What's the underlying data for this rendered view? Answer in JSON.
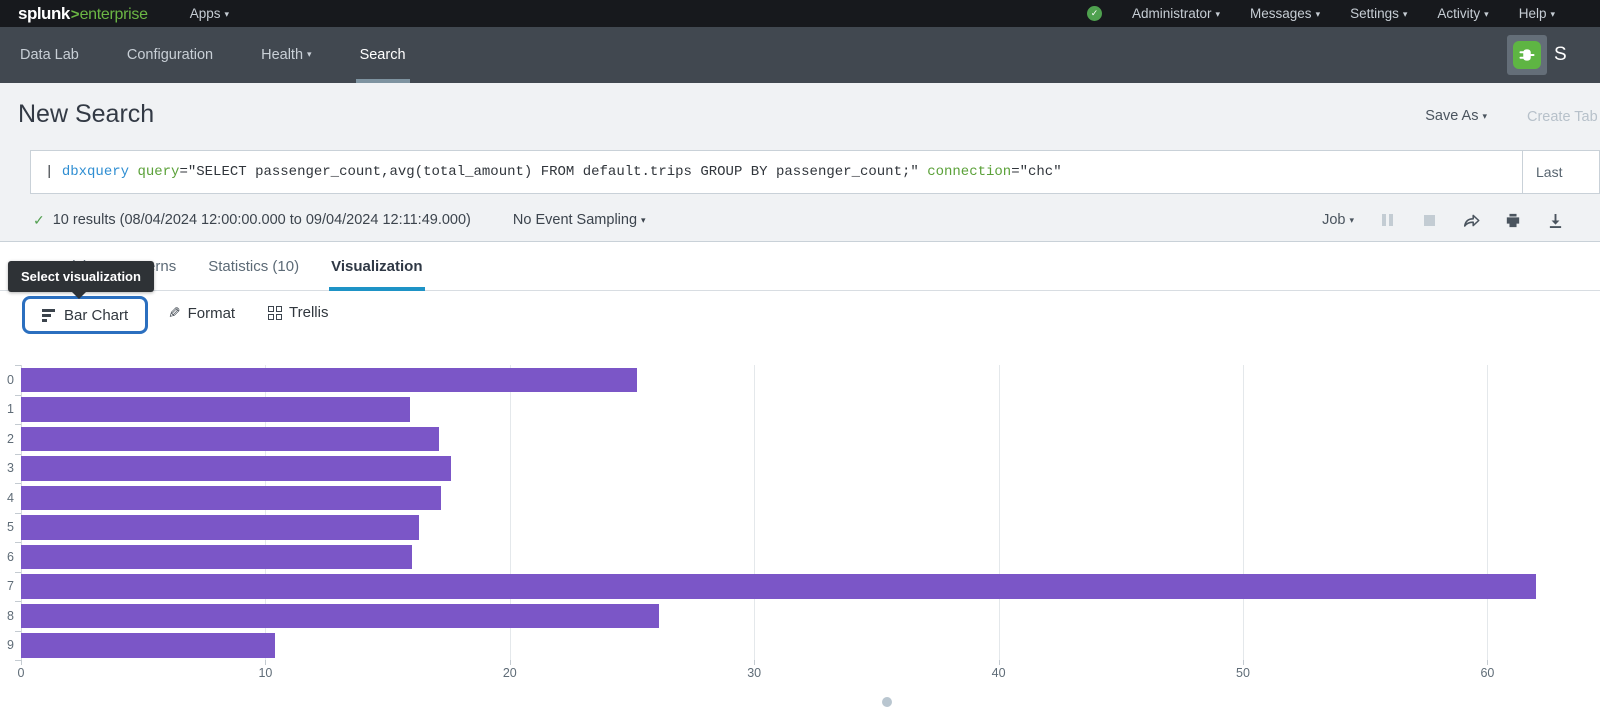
{
  "colors": {
    "bar_purple": "#7b56c7",
    "accent_blue": "#1e93c6",
    "brand_green": "#6bb644",
    "status_green": "#4fa14f",
    "button_border_blue": "#2b6fbf"
  },
  "topbar": {
    "logo": {
      "brand": "splunk",
      "separator": ">",
      "product": "enterprise"
    },
    "apps_label": "Apps",
    "menus": [
      {
        "label": "Administrator"
      },
      {
        "label": "Messages"
      },
      {
        "label": "Settings"
      },
      {
        "label": "Activity"
      },
      {
        "label": "Help"
      }
    ]
  },
  "appnav": {
    "items": [
      {
        "label": "Data Lab",
        "caret": false,
        "active": false
      },
      {
        "label": "Configuration",
        "caret": false,
        "active": false
      },
      {
        "label": "Health",
        "caret": true,
        "active": false
      },
      {
        "label": "Search",
        "caret": false,
        "active": true
      }
    ],
    "app_icon": "db-connect-plug-icon",
    "app_title_clipped": "S"
  },
  "header": {
    "title": "New Search",
    "save_as_label": "Save As",
    "create_table_label": "Create Tab"
  },
  "searchbar": {
    "segments": [
      {
        "text": "| ",
        "style": "default"
      },
      {
        "text": "dbxquery",
        "style": "command"
      },
      {
        "text": " ",
        "style": "default"
      },
      {
        "text": "query",
        "style": "keyword"
      },
      {
        "text": "=\"SELECT passenger_count,avg(total_amount) FROM default.trips GROUP BY passenger_count;\" ",
        "style": "default"
      },
      {
        "text": "connection",
        "style": "keyword"
      },
      {
        "text": "=\"chc\"",
        "style": "default"
      }
    ],
    "time_range_label": "Last"
  },
  "results_bar": {
    "check_icon": "checkmark",
    "summary": "10 results (08/04/2024 12:00:00.000 to 09/04/2024 12:11:49.000)",
    "sampling_label": "No Event Sampling",
    "job_label": "Job",
    "icons": [
      "pause-icon",
      "stop-icon",
      "share-icon",
      "print-icon",
      "export-icon"
    ]
  },
  "tabs": [
    {
      "label": "Events (0)",
      "active": false
    },
    {
      "label": "Patterns",
      "active": false
    },
    {
      "label": "Statistics (10)",
      "active": false
    },
    {
      "label": "Visualization",
      "active": true
    }
  ],
  "tooltip": {
    "text": "Select visualization"
  },
  "viz_controls": {
    "chart_type_label": "Bar Chart",
    "format_label": "Format",
    "trellis_label": "Trellis"
  },
  "chart_data": {
    "type": "bar",
    "orientation": "horizontal",
    "title": "",
    "xlabel": "",
    "ylabel": "",
    "categories": [
      "0",
      "1",
      "2",
      "3",
      "4",
      "5",
      "6",
      "7",
      "8",
      "9"
    ],
    "values": [
      25.2,
      15.9,
      17.1,
      17.6,
      17.2,
      16.3,
      16.0,
      62.0,
      26.1,
      10.4
    ],
    "x_ticks": [
      0,
      10,
      20,
      30,
      40,
      50,
      60
    ],
    "xlim": [
      0,
      64.6
    ],
    "grid": true,
    "legend": false,
    "bar_color": "#7b56c7"
  },
  "pagination": {
    "dot_count": 1
  }
}
